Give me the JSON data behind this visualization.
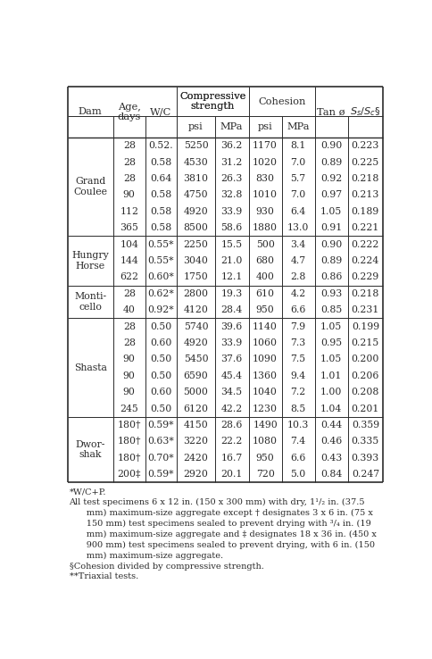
{
  "rows": [
    {
      "dam": "Grand\nCoulee",
      "entries": [
        [
          "28",
          "0.52.",
          "5250",
          "36.2",
          "1170",
          "8.1",
          "0.90",
          "0.223"
        ],
        [
          "28",
          "0.58",
          "4530",
          "31.2",
          "1020",
          "7.0",
          "0.89",
          "0.225"
        ],
        [
          "28",
          "0.64",
          "3810",
          "26.3",
          "830",
          "5.7",
          "0.92",
          "0.218"
        ],
        [
          "90",
          "0.58",
          "4750",
          "32.8",
          "1010",
          "7.0",
          "0.97",
          "0.213"
        ],
        [
          "112",
          "0.58",
          "4920",
          "33.9",
          "930",
          "6.4",
          "1.05",
          "0.189"
        ],
        [
          "365",
          "0.58",
          "8500",
          "58.6",
          "1880",
          "13.0",
          "0.91",
          "0.221"
        ]
      ]
    },
    {
      "dam": "Hungry\nHorse",
      "entries": [
        [
          "104",
          "0.55*",
          "2250",
          "15.5",
          "500",
          "3.4",
          "0.90",
          "0.222"
        ],
        [
          "144",
          "0.55*",
          "3040",
          "21.0",
          "680",
          "4.7",
          "0.89",
          "0.224"
        ],
        [
          "622",
          "0.60*",
          "1750",
          "12.1",
          "400",
          "2.8",
          "0.86",
          "0.229"
        ]
      ]
    },
    {
      "dam": "Monti-\ncello",
      "entries": [
        [
          "28",
          "0.62*",
          "2800",
          "19.3",
          "610",
          "4.2",
          "0.93",
          "0.218"
        ],
        [
          "40",
          "0.92*",
          "4120",
          "28.4",
          "950",
          "6.6",
          "0.85",
          "0.231"
        ]
      ]
    },
    {
      "dam": "Shasta",
      "entries": [
        [
          "28",
          "0.50",
          "5740",
          "39.6",
          "1140",
          "7.9",
          "1.05",
          "0.199"
        ],
        [
          "28",
          "0.60",
          "4920",
          "33.9",
          "1060",
          "7.3",
          "0.95",
          "0.215"
        ],
        [
          "90",
          "0.50",
          "5450",
          "37.6",
          "1090",
          "7.5",
          "1.05",
          "0.200"
        ],
        [
          "90",
          "0.50",
          "6590",
          "45.4",
          "1360",
          "9.4",
          "1.01",
          "0.206"
        ],
        [
          "90",
          "0.60",
          "5000",
          "34.5",
          "1040",
          "7.2",
          "1.00",
          "0.208"
        ],
        [
          "245",
          "0.50",
          "6120",
          "42.2",
          "1230",
          "8.5",
          "1.04",
          "0.201"
        ]
      ]
    },
    {
      "dam": "Dwor-\nshak",
      "entries": [
        [
          "180†",
          "0.59*",
          "4150",
          "28.6",
          "1490",
          "10.3",
          "0.44",
          "0.359"
        ],
        [
          "180†",
          "0.63*",
          "3220",
          "22.2",
          "1080",
          "7.4",
          "0.46",
          "0.335"
        ],
        [
          "180†",
          "0.70*",
          "2420",
          "16.7",
          "950",
          "6.6",
          "0.43",
          "0.393"
        ],
        [
          "200‡",
          "0.59*",
          "2920",
          "20.1",
          "720",
          "5.0",
          "0.84",
          "0.247"
        ]
      ]
    }
  ],
  "footnotes": [
    "*W/C+P.",
    "All test specimens 6 x 12 in. (150 x 300 mm) with dry, 1¹/₂ in. (37.5",
    "      mm) maximum-size aggregate except † designates 3 x 6 in. (75 x",
    "      150 mm) test specimens sealed to prevent drying with ³/₄ in. (19",
    "      mm) maximum-size aggregate and ‡ designates 18 x 36 in. (450 x",
    "      900 mm) test specimens sealed to prevent drying, with 6 in. (150",
    "      mm) maximum-size aggregate.",
    "§Cohesion divided by compressive strength.",
    "**Triaxial tests."
  ],
  "text_color": "#2b2b2b",
  "line_color": "#2b2b2b",
  "bg_color": "#ffffff",
  "font_size": 7.8,
  "header_font_size": 8.2,
  "footnote_font_size": 7.0
}
